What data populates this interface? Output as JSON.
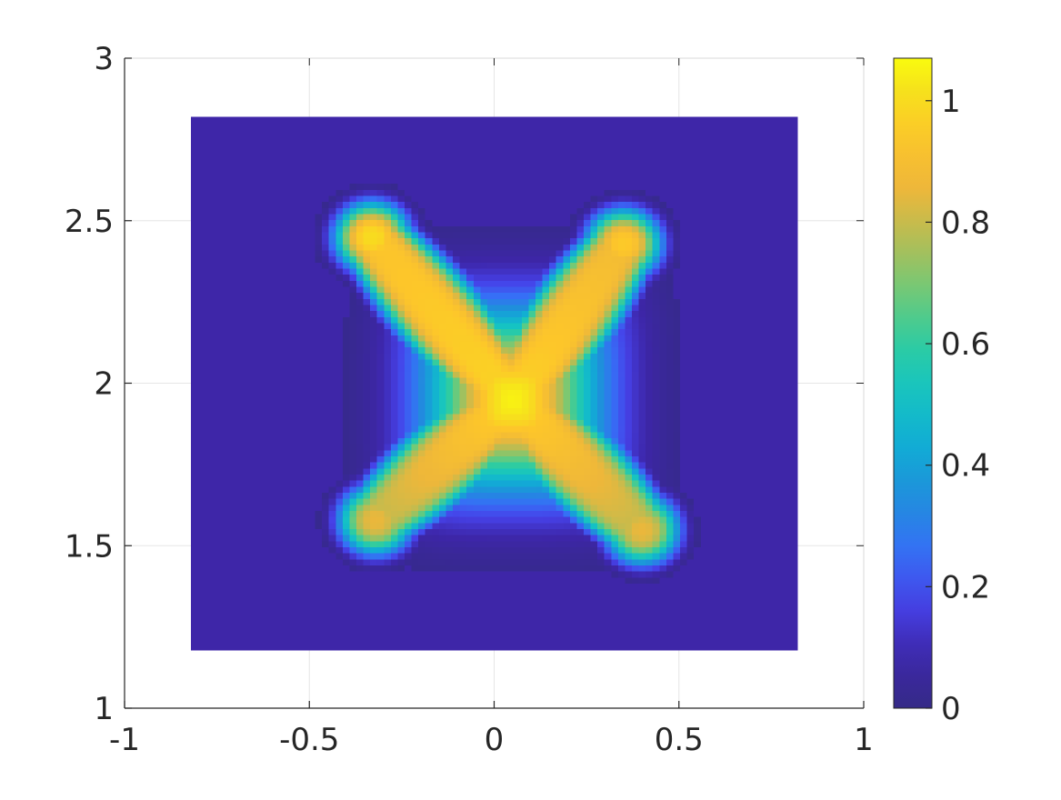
{
  "chart_data": {
    "type": "heatmap",
    "title": "",
    "xlabel": "",
    "ylabel": "",
    "xlim": [
      -1,
      1
    ],
    "ylim": [
      1,
      3
    ],
    "xticks": [
      -1,
      -0.5,
      0,
      0.5,
      1
    ],
    "yticks": [
      1,
      1.5,
      2,
      2.5,
      3
    ],
    "xtick_labels": [
      "-1",
      "-0.5",
      "0",
      "0.5",
      "1"
    ],
    "ytick_labels": [
      "1",
      "1.5",
      "2",
      "2.5",
      "3"
    ],
    "grid": true,
    "colormap": "parula",
    "data_extent": {
      "x": [
        -0.82,
        0.82
      ],
      "y": [
        1.18,
        2.82
      ]
    },
    "grid_resolution": [
      88,
      88
    ],
    "colorbar": {
      "location": "right",
      "limits": [
        0,
        1.07
      ],
      "ticks": [
        0,
        0.2,
        0.4,
        0.6,
        0.8,
        1
      ],
      "tick_labels": [
        "0",
        "0.2",
        "0.4",
        "0.6",
        "0.8",
        "1"
      ]
    },
    "features": [
      {
        "name": "center",
        "x": 0.05,
        "y": 1.95,
        "peak": 1.05
      },
      {
        "name": "upper-left lobe",
        "x": -0.33,
        "y": 2.45,
        "peak": 1.0
      },
      {
        "name": "upper-right lobe",
        "x": 0.35,
        "y": 2.43,
        "peak": 0.95
      },
      {
        "name": "lower-left lobe",
        "x": -0.32,
        "y": 1.58,
        "peak": 0.85
      },
      {
        "name": "lower-right lobe",
        "x": 0.4,
        "y": 1.55,
        "peak": 0.85
      }
    ],
    "background_value": 0,
    "colors": {
      "background_fill": "#3e26a8",
      "axis": "#262626",
      "grid": "#e6e6e6"
    }
  }
}
